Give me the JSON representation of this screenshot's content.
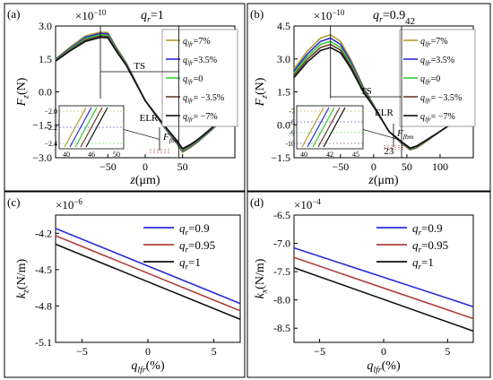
{
  "figure": {
    "background": "#ffffff",
    "colors": {
      "blue": "#2b2bd9",
      "red": "#b0403a",
      "black": "#111111",
      "green": "#33cc33",
      "olive": "#b59a2e",
      "brown": "#6e3a2a",
      "cyan": "#40b6c8"
    }
  },
  "chart_data": [
    {
      "id": "a",
      "type": "line",
      "panel_label": "(a)",
      "title_var": "q",
      "title_sub": "r",
      "title_value": "=1",
      "exponent_label": "×10",
      "exponent_power": "−10",
      "xlabel": "z(μm)",
      "ylabel": "F",
      "ylabel_sub": "z",
      "ylabel_unit": "(N)",
      "xlim": [
        -120,
        120
      ],
      "ylim": [
        -3.0,
        3.0
      ],
      "xticks": [
        -50,
        0,
        50
      ],
      "xtick_labels": [
        "−50",
        "0",
        "50"
      ],
      "yticks": [
        -3.0,
        -1.5,
        0.0,
        1.5,
        3.0
      ],
      "ytick_labels": [
        "−3.0",
        "−1.5",
        "0.0",
        "1.5",
        "3.0"
      ],
      "legend": {
        "placement": "right",
        "entries": [
          {
            "label": "=7%",
            "color": "#b59a2e"
          },
          {
            "label": "=3.5%",
            "color": "#2b2bd9"
          },
          {
            "label": "=0",
            "color": "#33cc33"
          },
          {
            "label": "= −3.5%",
            "color": "#6e3a2a"
          },
          {
            "label": "= −7%",
            "color": "#111111"
          }
        ],
        "var": "q",
        "sub": "lfr"
      },
      "series": [
        {
          "color": "#b59a2e",
          "x": [
            -120,
            -100,
            -80,
            -60,
            -50,
            -40,
            -25,
            0,
            25,
            40,
            50,
            60,
            70,
            80,
            100,
            120
          ],
          "y": [
            1.5,
            2.05,
            2.55,
            2.72,
            2.7,
            2.1,
            1.3,
            -0.4,
            -1.6,
            -2.25,
            -2.75,
            -2.55,
            -2.3,
            -2.0,
            -1.4,
            -0.7
          ]
        },
        {
          "color": "#2b2bd9",
          "x": [
            -120,
            -100,
            -80,
            -60,
            -50,
            -40,
            -25,
            0,
            25,
            40,
            50,
            60,
            70,
            80,
            100,
            120
          ],
          "y": [
            1.48,
            2.0,
            2.48,
            2.66,
            2.64,
            2.05,
            1.27,
            -0.4,
            -1.58,
            -2.22,
            -2.7,
            -2.5,
            -2.27,
            -1.98,
            -1.38,
            -0.7
          ]
        },
        {
          "color": "#33cc33",
          "x": [
            -120,
            -100,
            -80,
            -60,
            -50,
            -40,
            -25,
            0,
            25,
            40,
            50,
            60,
            70,
            80,
            100,
            120
          ],
          "y": [
            1.45,
            1.96,
            2.42,
            2.6,
            2.58,
            2.0,
            1.24,
            -0.4,
            -1.55,
            -2.18,
            -2.66,
            -2.47,
            -2.24,
            -1.95,
            -1.36,
            -0.7
          ]
        },
        {
          "color": "#6e3a2a",
          "x": [
            -120,
            -100,
            -80,
            -60,
            -50,
            -40,
            -25,
            0,
            25,
            40,
            50,
            60,
            70,
            80,
            100,
            120
          ],
          "y": [
            1.42,
            1.92,
            2.36,
            2.54,
            2.52,
            1.96,
            1.21,
            -0.4,
            -1.52,
            -2.15,
            -2.62,
            -2.44,
            -2.21,
            -1.92,
            -1.34,
            -0.7
          ]
        },
        {
          "color": "#111111",
          "x": [
            -120,
            -100,
            -80,
            -60,
            -50,
            -40,
            -25,
            0,
            25,
            40,
            50,
            60,
            70,
            80,
            100,
            120
          ],
          "y": [
            1.4,
            1.88,
            2.3,
            2.48,
            2.46,
            1.92,
            1.18,
            -0.4,
            -1.5,
            -2.12,
            -2.58,
            -2.41,
            -2.18,
            -1.9,
            -1.32,
            -0.7
          ]
        }
      ],
      "annotations": {
        "ts": "TS",
        "elr": "ELR",
        "fbm": "F",
        "fbm_sub": "fbm"
      },
      "inset": {
        "xticks": [
          40,
          46,
          50
        ],
        "xtick_labels": [
          "40",
          "46",
          "50"
        ],
        "yticks": [
          -2.0,
          -2.2,
          -2.4
        ],
        "ytick_labels": [
          "−2.0",
          "−2.2",
          "−2.4"
        ]
      }
    },
    {
      "id": "b",
      "type": "line",
      "panel_label": "(b)",
      "title_var": "q",
      "title_sub": "r",
      "title_value": "=0.9",
      "exponent_label": "×10",
      "exponent_power": "−10",
      "xlabel": "z(μm)",
      "ylabel": "F",
      "ylabel_sub": "z",
      "ylabel_unit": "(N)",
      "xlim": [
        -120,
        150
      ],
      "ylim": [
        -1.5,
        4.5
      ],
      "xticks": [
        -50,
        0,
        50,
        100
      ],
      "xtick_labels": [
        "−50",
        "0",
        "50",
        "100"
      ],
      "yticks": [
        -1.5,
        0.0,
        1.5,
        3.0,
        4.5
      ],
      "ytick_labels": [
        "−1.5",
        "0.0",
        "1.5",
        "3.0",
        "4.5"
      ],
      "callouts": {
        "top": "42",
        "bottom": "23"
      },
      "legend": {
        "placement": "right",
        "entries": [
          {
            "label": "=7%",
            "color": "#b59a2e"
          },
          {
            "label": "=3.5%",
            "color": "#2b2bd9"
          },
          {
            "label": "=0",
            "color": "#33cc33"
          },
          {
            "label": "= −3.5%",
            "color": "#6e3a2a"
          },
          {
            "label": "= −7%",
            "color": "#111111"
          }
        ],
        "var": "q",
        "sub": "lfr"
      },
      "series": [
        {
          "color": "#b59a2e",
          "x": [
            -120,
            -100,
            -80,
            -65,
            -50,
            -35,
            -15,
            0,
            23,
            42,
            55,
            65,
            80,
            100,
            125,
            150
          ],
          "y": [
            2.55,
            3.35,
            3.95,
            4.1,
            3.8,
            3.0,
            1.7,
            0.9,
            -0.3,
            -0.85,
            -1.15,
            -1.05,
            -0.75,
            -0.3,
            0.2,
            0.5
          ]
        },
        {
          "color": "#2b2bd9",
          "x": [
            -120,
            -100,
            -80,
            -65,
            -50,
            -35,
            -15,
            0,
            23,
            42,
            55,
            65,
            80,
            100,
            125,
            150
          ],
          "y": [
            2.45,
            3.22,
            3.8,
            3.95,
            3.66,
            2.9,
            1.64,
            0.88,
            -0.3,
            -0.83,
            -1.12,
            -1.02,
            -0.73,
            -0.3,
            0.2,
            0.5
          ]
        },
        {
          "color": "#33cc33",
          "x": [
            -120,
            -100,
            -80,
            -65,
            -50,
            -35,
            -15,
            0,
            23,
            42,
            55,
            65,
            80,
            100,
            125,
            150
          ],
          "y": [
            2.35,
            3.1,
            3.66,
            3.8,
            3.52,
            2.8,
            1.58,
            0.86,
            -0.3,
            -0.81,
            -1.1,
            -1.0,
            -0.72,
            -0.3,
            0.2,
            0.5
          ]
        },
        {
          "color": "#6e3a2a",
          "x": [
            -120,
            -100,
            -80,
            -65,
            -50,
            -35,
            -15,
            0,
            23,
            42,
            55,
            65,
            80,
            100,
            125,
            150
          ],
          "y": [
            2.25,
            2.98,
            3.52,
            3.66,
            3.4,
            2.7,
            1.52,
            0.84,
            -0.3,
            -0.79,
            -1.08,
            -0.98,
            -0.7,
            -0.3,
            0.2,
            0.5
          ]
        },
        {
          "color": "#111111",
          "x": [
            -120,
            -100,
            -80,
            -65,
            -50,
            -35,
            -15,
            0,
            23,
            42,
            55,
            65,
            80,
            100,
            125,
            150
          ],
          "y": [
            2.15,
            2.86,
            3.38,
            3.52,
            3.28,
            2.6,
            1.46,
            0.82,
            -0.3,
            -0.77,
            -1.06,
            -0.96,
            -0.68,
            -0.3,
            0.2,
            0.5
          ]
        }
      ],
      "annotations": {
        "ts": "TS",
        "elr": "ELR",
        "fbm": "F",
        "fbm_sub": "fbm"
      },
      "inset": {
        "xticks": [
          40,
          42,
          45
        ],
        "xtick_labels": [
          "40",
          "42",
          "45"
        ],
        "yticks": [
          -7,
          -8,
          -9,
          -10
        ],
        "ytick_labels": [
          "-7",
          "-8",
          "-9",
          "-10"
        ]
      }
    },
    {
      "id": "c",
      "type": "line",
      "panel_label": "(c)",
      "exponent_label": "×10",
      "exponent_power": "−6",
      "xlabel": "q",
      "xlabel_sub": "lfr",
      "xlabel_unit": "(%)",
      "ylabel": "k",
      "ylabel_sub": "z",
      "ylabel_unit": "(N/m)",
      "xlim": [
        -7,
        7
      ],
      "ylim": [
        -5.1,
        -4.05
      ],
      "xticks": [
        -5,
        0,
        5
      ],
      "xtick_labels": [
        "−5",
        "0",
        "5"
      ],
      "yticks": [
        -4.2,
        -4.5,
        -4.8,
        -5.1
      ],
      "ytick_labels": [
        "-4.2",
        "-4.5",
        "-4.8",
        "-5.1"
      ],
      "legend": {
        "placement": "top-right",
        "var": "q",
        "sub": "r",
        "entries": [
          {
            "label": "=0.9",
            "color": "#2b2bd9"
          },
          {
            "label": "=0.95",
            "color": "#b0403a"
          },
          {
            "label": "=1",
            "color": "#111111"
          }
        ]
      },
      "series": [
        {
          "color": "#2b2bd9",
          "x": [
            -7,
            7
          ],
          "y": [
            -4.16,
            -4.78
          ]
        },
        {
          "color": "#b0403a",
          "x": [
            -7,
            7
          ],
          "y": [
            -4.22,
            -4.84
          ]
        },
        {
          "color": "#111111",
          "x": [
            -7,
            7
          ],
          "y": [
            -4.29,
            -4.91
          ]
        }
      ]
    },
    {
      "id": "d",
      "type": "line",
      "panel_label": "(d)",
      "exponent_label": "×10",
      "exponent_power": "−4",
      "xlabel": "q",
      "xlabel_sub": "lfr",
      "xlabel_unit": "(%)",
      "ylabel": "k",
      "ylabel_sub": "x",
      "ylabel_unit": "(N/m)",
      "xlim": [
        -7,
        7
      ],
      "ylim": [
        -8.75,
        -6.5
      ],
      "xticks": [
        -5,
        0,
        5
      ],
      "xtick_labels": [
        "−5",
        "0",
        "5"
      ],
      "yticks": [
        -6.5,
        -7.0,
        -7.5,
        -8.0,
        -8.5
      ],
      "ytick_labels": [
        "-6.5",
        "-7.0",
        "-7.5",
        "-8.0",
        "-8.5"
      ],
      "legend": {
        "placement": "top-right",
        "var": "q",
        "sub": "r",
        "entries": [
          {
            "label": "=0.9",
            "color": "#2b2bd9"
          },
          {
            "label": "=0.95",
            "color": "#b0403a"
          },
          {
            "label": "=1",
            "color": "#111111"
          }
        ]
      },
      "series": [
        {
          "color": "#2b2bd9",
          "x": [
            -7,
            7
          ],
          "y": [
            -7.08,
            -8.12
          ]
        },
        {
          "color": "#b0403a",
          "x": [
            -7,
            7
          ],
          "y": [
            -7.25,
            -8.33
          ]
        },
        {
          "color": "#111111",
          "x": [
            -7,
            7
          ],
          "y": [
            -7.43,
            -8.55
          ]
        }
      ]
    }
  ]
}
